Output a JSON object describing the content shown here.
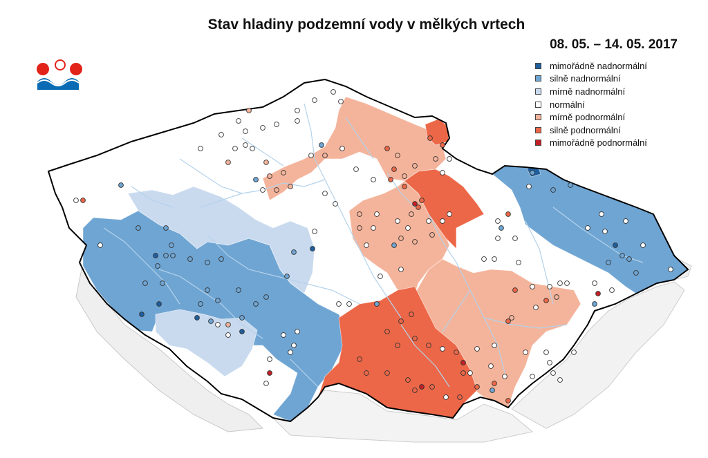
{
  "title": "Stav hladiny podzemní vody v mělkých vrtech",
  "date_range": "08. 05. – 14. 05. 2017",
  "logo": {
    "icon": "chmi-logo",
    "colors": [
      "#e2231a",
      "#0a6bb4"
    ]
  },
  "legend": {
    "items": [
      {
        "label": "mimořádně nadnormální",
        "color": "#1f5f9e"
      },
      {
        "label": "silně nadnormální",
        "color": "#6fa5d3"
      },
      {
        "label": "mírně nadnormální",
        "color": "#c9daef"
      },
      {
        "label": "normální",
        "color": "#ffffff"
      },
      {
        "label": "mírně podnormální",
        "color": "#f4b49b"
      },
      {
        "label": "silně podnormální",
        "color": "#ec6748"
      },
      {
        "label": "mimořádně podnormální",
        "color": "#c42026"
      }
    ]
  },
  "map": {
    "fill_normal": "#ffffff",
    "neighbour_fill": "#efefef",
    "river_color": "#b4d2ea",
    "border_color": "#000000"
  }
}
